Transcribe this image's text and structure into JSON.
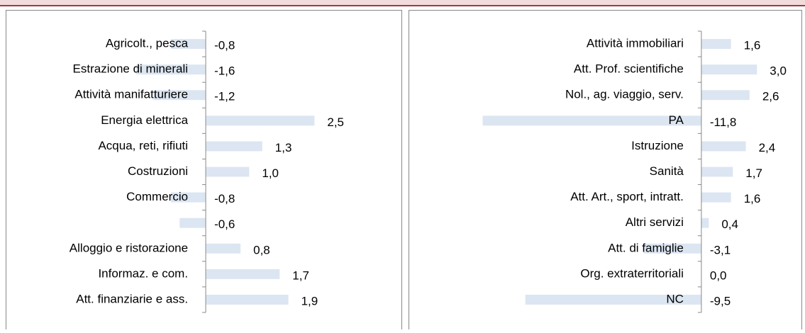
{
  "chart_data": [
    {
      "type": "bar",
      "orientation": "horizontal",
      "color": "#dce6f2",
      "categories": [
        "Agricolt., pesca",
        "Estrazione di minerali",
        "Attività manifatturiere",
        "Energia elettrica",
        "Acqua, reti, rifiuti",
        "Costruzioni",
        "Commercio",
        null,
        "Alloggio e ristorazione",
        "Informaz. e com.",
        "Att. finanziarie e ass."
      ],
      "values": [
        -0.8,
        -1.6,
        -1.2,
        2.5,
        1.3,
        1.0,
        -0.8,
        -0.6,
        0.8,
        1.7,
        1.9
      ],
      "value_labels": [
        "-0,8",
        "-1,6",
        "-1,2",
        "2,5",
        "1,3",
        "1,0",
        "-0,8",
        "-0,6",
        "0,8",
        "1,7",
        "1,9"
      ],
      "xlim": [
        -4.6,
        4.5
      ]
    },
    {
      "type": "bar",
      "orientation": "horizontal",
      "color": "#dce6f2",
      "categories": [
        "Attività immobiliari",
        "Att. Prof. scientifiche",
        "Nol., ag. viaggio,  serv.",
        "PA",
        "Istruzione",
        "Sanità",
        "Att. Art., sport, intratt.",
        "Altri servizi",
        "Att. di famiglie",
        "Org. extraterritoriali",
        "NC"
      ],
      "values": [
        1.6,
        3.0,
        2.6,
        -11.8,
        2.4,
        1.7,
        1.6,
        0.4,
        -3.1,
        0.0,
        -9.5
      ],
      "value_labels": [
        "1,6",
        "3,0",
        "2,6",
        "-11,8",
        "2,4",
        "1,7",
        "1,6",
        "0,4",
        "-3,1",
        "0,0",
        "-9,5"
      ],
      "xlim": [
        -15.8,
        5.4
      ]
    }
  ]
}
